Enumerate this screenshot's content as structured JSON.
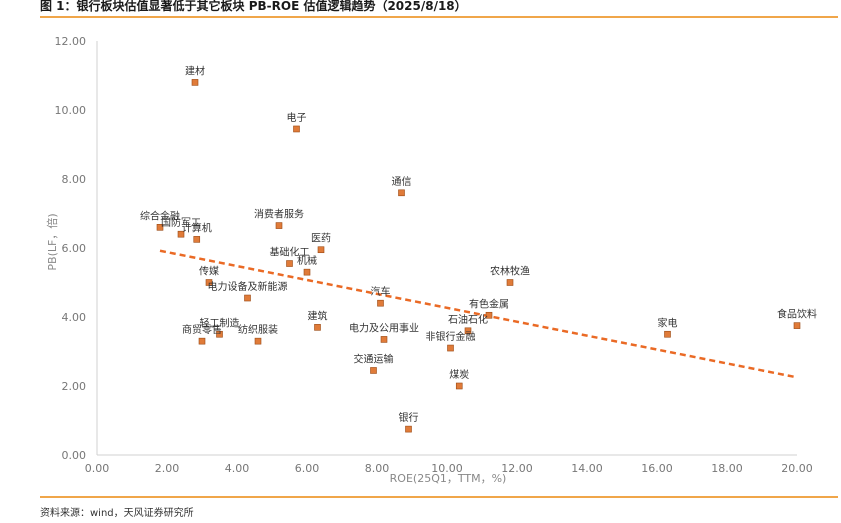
{
  "figure": {
    "title": "图 1：银行板块估值显著低于其它板块 PB-ROE 估值逻辑趋势（2025/8/18）",
    "source": "资料来源：wind，天风证券研究所"
  },
  "chart_data": {
    "type": "scatter",
    "title": "",
    "xlabel": "ROE(25Q1，TTM，%)",
    "ylabel": "PB(LF，倍)",
    "xlim": [
      0,
      20
    ],
    "ylim": [
      0,
      12
    ],
    "x_ticks": [
      "0.00",
      "2.00",
      "4.00",
      "6.00",
      "8.00",
      "10.00",
      "12.00",
      "14.00",
      "16.00",
      "18.00",
      "20.00"
    ],
    "y_ticks": [
      "0.00",
      "2.00",
      "4.00",
      "6.00",
      "8.00",
      "10.00",
      "12.00"
    ],
    "grid": false,
    "marker_color": "#e07b39",
    "marker_edge": "#9a4a14",
    "trend_color": "#ea6a25",
    "trendline": {
      "x": [
        1.8,
        20.0
      ],
      "y": [
        5.92,
        2.25
      ]
    },
    "points": [
      {
        "label": "建材",
        "x": 2.8,
        "y": 10.8
      },
      {
        "label": "电子",
        "x": 5.7,
        "y": 9.45
      },
      {
        "label": "通信",
        "x": 8.7,
        "y": 7.6
      },
      {
        "label": "综合金融",
        "x": 1.8,
        "y": 6.6
      },
      {
        "label": "国防军工",
        "x": 2.4,
        "y": 6.4
      },
      {
        "label": "计算机",
        "x": 2.85,
        "y": 6.25
      },
      {
        "label": "消费者服务",
        "x": 5.2,
        "y": 6.65
      },
      {
        "label": "医药",
        "x": 6.4,
        "y": 5.95
      },
      {
        "label": "基础化工",
        "x": 5.5,
        "y": 5.55
      },
      {
        "label": "机械",
        "x": 6.0,
        "y": 5.3
      },
      {
        "label": "传媒",
        "x": 3.2,
        "y": 5.0
      },
      {
        "label": "电力设备及新能源",
        "x": 4.3,
        "y": 4.55
      },
      {
        "label": "农林牧渔",
        "x": 11.8,
        "y": 5.0
      },
      {
        "label": "汽车",
        "x": 8.1,
        "y": 4.4
      },
      {
        "label": "有色金属",
        "x": 11.2,
        "y": 4.05
      },
      {
        "label": "建筑",
        "x": 6.3,
        "y": 3.7
      },
      {
        "label": "轻工制造",
        "x": 3.5,
        "y": 3.5
      },
      {
        "label": "商贸零售",
        "x": 3.0,
        "y": 3.3
      },
      {
        "label": "纺织服装",
        "x": 4.6,
        "y": 3.3
      },
      {
        "label": "电力及公用事业",
        "x": 8.2,
        "y": 3.35
      },
      {
        "label": "石油石化",
        "x": 10.6,
        "y": 3.6
      },
      {
        "label": "非银行金融",
        "x": 10.1,
        "y": 3.1
      },
      {
        "label": "家电",
        "x": 16.3,
        "y": 3.5
      },
      {
        "label": "食品饮料",
        "x": 20.0,
        "y": 3.75
      },
      {
        "label": "交通运输",
        "x": 7.9,
        "y": 2.45
      },
      {
        "label": "煤炭",
        "x": 10.35,
        "y": 2.0
      },
      {
        "label": "银行",
        "x": 8.9,
        "y": 0.75
      }
    ]
  }
}
